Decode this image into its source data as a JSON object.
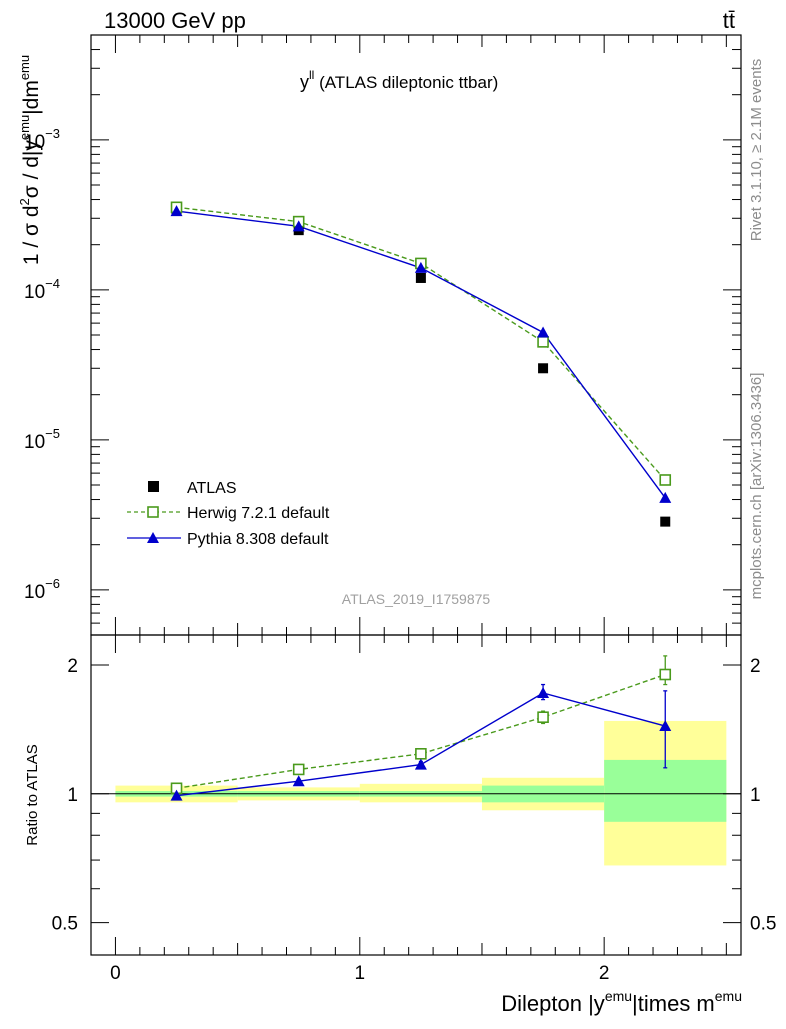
{
  "header": {
    "left": "13000 GeV pp",
    "right": "tt̄"
  },
  "side_labels": {
    "rivet": "Rivet 3.1.10, ≥ 2.1M events",
    "mcplots": "mcplots.cern.ch [arXiv:1306.3436]"
  },
  "chart_data": [
    {
      "type": "scatter",
      "title": "y",
      "title_sup": "ll",
      "title_rest": " (ATLAS dileptonic ttbar)",
      "watermark": "ATLAS_2019_I1759875",
      "ylabel": "1 / σ d²σ / d|yᵉᵐᵘ|dmᵉᵐᵘ",
      "ylabel_parts": {
        "a": "1 / σ  d",
        "a_sup": "2",
        "b": "σ / d|y",
        "b_sup": "emu",
        "c": "|dm",
        "c_sup": "emu"
      },
      "yscale": "log",
      "ylim": [
        5e-07,
        0.005
      ],
      "xlim": [
        -0.1,
        2.56
      ],
      "ytick_labels": [
        {
          "value": 1e-06,
          "mant": "10",
          "exp": "−6"
        },
        {
          "value": 1e-05,
          "mant": "10",
          "exp": "−5"
        },
        {
          "value": 0.0001,
          "mant": "10",
          "exp": "−4"
        },
        {
          "value": 0.001,
          "mant": "10",
          "exp": "−3"
        }
      ],
      "legend_position": "bottom-left",
      "series": [
        {
          "name": "ATLAS",
          "style": "marker-square-filled",
          "color": "#000000",
          "x": [
            0.25,
            0.75,
            1.25,
            1.75,
            2.25
          ],
          "y": [
            0.00034,
            0.00025,
            0.00012,
            3e-05,
            2.85e-06
          ]
        },
        {
          "name": "Herwig 7.2.1 default",
          "style": "dashed-open-square",
          "color": "#4a9a1c",
          "x": [
            0.25,
            0.75,
            1.25,
            1.75,
            2.25
          ],
          "y": [
            0.000355,
            0.000285,
            0.00015,
            4.5e-05,
            5.4e-06
          ]
        },
        {
          "name": "Pythia 8.308 default",
          "style": "solid-filled-triangle",
          "color": "#0000cc",
          "x": [
            0.25,
            0.75,
            1.25,
            1.75,
            2.25
          ],
          "y": [
            0.000335,
            0.000265,
            0.00014,
            5.2e-05,
            4.1e-06
          ]
        }
      ]
    },
    {
      "type": "scatter",
      "ylabel": "Ratio to ATLAS",
      "xlabel": "Dilepton |y",
      "xlabel_parts": {
        "a": "Dilepton |y",
        "a_sup": "emu",
        "b": "|times m",
        "b_sup": "emu"
      },
      "ylim": [
        0.42,
        2.35
      ],
      "xlim": [
        -0.1,
        2.56
      ],
      "ytick_labels": [
        {
          "value": 0.5,
          "label": "0.5"
        },
        {
          "value": 1,
          "label": "1"
        },
        {
          "value": 2,
          "label": "2"
        }
      ],
      "xtick_labels": [
        {
          "value": 0,
          "label": "0"
        },
        {
          "value": 1,
          "label": "1"
        },
        {
          "value": 2,
          "label": "2"
        }
      ],
      "bands": {
        "x_edges": [
          0,
          0.5,
          1.0,
          1.5,
          2.0,
          2.5
        ],
        "stat_low": [
          0.985,
          0.985,
          0.985,
          0.955,
          0.86
        ],
        "stat_high": [
          1.015,
          1.015,
          1.015,
          1.045,
          1.2
        ],
        "total_low": [
          0.955,
          0.965,
          0.955,
          0.915,
          0.68
        ],
        "total_high": [
          1.045,
          1.035,
          1.055,
          1.09,
          1.48
        ]
      },
      "series": [
        {
          "name": "Herwig 7.2.1 default",
          "color": "#4a9a1c",
          "x": [
            0.25,
            0.75,
            1.25,
            1.75,
            2.25
          ],
          "y": [
            1.03,
            1.14,
            1.24,
            1.51,
            1.9
          ],
          "err_low": [
            0.01,
            0.015,
            0.02,
            0.05,
            0.1
          ],
          "err_high": [
            0.01,
            0.015,
            0.02,
            0.05,
            0.2
          ]
        },
        {
          "name": "Pythia 8.308 default",
          "color": "#0000cc",
          "x": [
            0.25,
            0.75,
            1.25,
            1.75,
            2.25
          ],
          "y": [
            0.99,
            1.07,
            1.17,
            1.72,
            1.44
          ],
          "err_low": [
            0.008,
            0.01,
            0.02,
            0.06,
            0.29
          ],
          "err_high": [
            0.008,
            0.01,
            0.02,
            0.08,
            0.3
          ]
        }
      ]
    }
  ]
}
